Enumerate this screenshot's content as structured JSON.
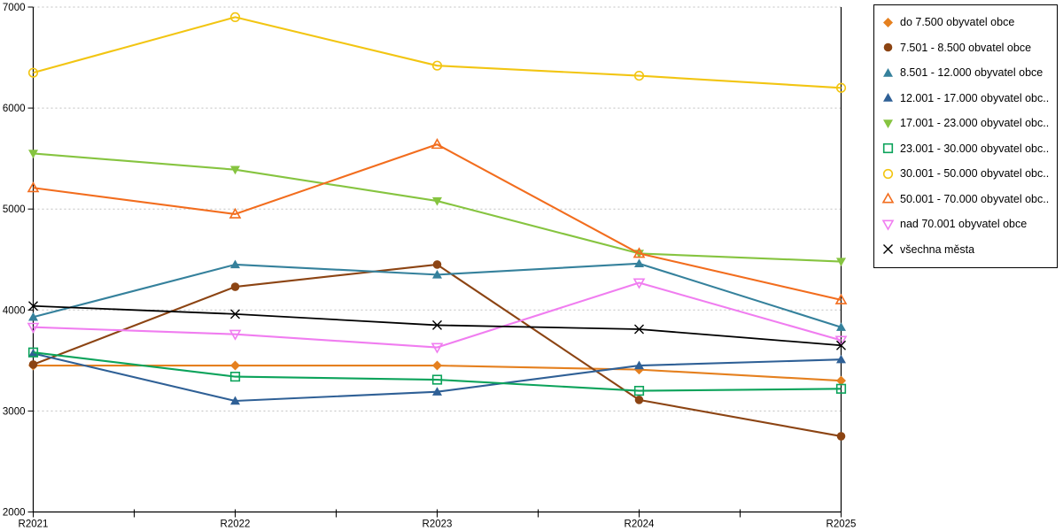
{
  "chart_data": {
    "type": "line",
    "title": "",
    "xlabel": "",
    "ylabel": "",
    "categories": [
      "R2021",
      "R2022",
      "R2023",
      "R2024",
      "R2025"
    ],
    "y_ticks": [
      2000,
      3000,
      4000,
      5000,
      6000,
      7000
    ],
    "ylim": [
      2000,
      7000
    ],
    "grid": "horizontal dashed lines at each 1000",
    "legend_position": "right",
    "colors": {
      "grid": "#c0c0c0",
      "axis": "#000000",
      "background": "#ffffff"
    },
    "series": [
      {
        "id": "do-7500",
        "label": "do 7.500 obyvatel obce",
        "color": "#e5801f",
        "marker": "diamond-filled",
        "values": [
          3450,
          3450,
          3450,
          3410,
          3300
        ]
      },
      {
        "id": "7501-8500",
        "label": "7.501 - 8.500 obvatel obce",
        "color": "#8c4413",
        "marker": "circle-filled",
        "values": [
          3460,
          4230,
          4450,
          3110,
          2750
        ]
      },
      {
        "id": "8501-12000",
        "label": "8.501 - 12.000 obyvatel obce",
        "color": "#35819c",
        "marker": "triangle-up-filled",
        "values": [
          3930,
          4450,
          4350,
          4460,
          3830
        ]
      },
      {
        "id": "12001-17000",
        "label": "12.001 - 17.000 obyvatel obc...",
        "color": "#2f6096",
        "marker": "triangle-up-filled",
        "values": [
          3570,
          3100,
          3190,
          3450,
          3510
        ]
      },
      {
        "id": "17001-23000",
        "label": "17.001 - 23.000 obyvatel obc...",
        "color": "#86c440",
        "marker": "triangle-down-filled",
        "values": [
          5550,
          5390,
          5080,
          4560,
          4480
        ]
      },
      {
        "id": "23001-30000",
        "label": "23.001 - 30.000 obyvatel obc...",
        "color": "#0ca35b",
        "marker": "square-open",
        "values": [
          3580,
          3340,
          3310,
          3200,
          3220
        ]
      },
      {
        "id": "30001-50000",
        "label": "30.001 - 50.000 obyvatel obc...",
        "color": "#f2c512",
        "marker": "circle-open",
        "values": [
          6350,
          6900,
          6420,
          6320,
          6200
        ]
      },
      {
        "id": "50001-70000",
        "label": "50.001 - 70.000 obyvatel obc...",
        "color": "#f26d1e",
        "marker": "triangle-up-open",
        "values": [
          5210,
          4950,
          5640,
          4560,
          4100
        ]
      },
      {
        "id": "nad-70001",
        "label": "nad 70.001 obyvatel obce",
        "color": "#f07df0",
        "marker": "triangle-down-open",
        "values": [
          3830,
          3760,
          3630,
          4270,
          3700
        ]
      },
      {
        "id": "vsechna-mesta",
        "label": "všechna města",
        "color": "#000000",
        "marker": "x",
        "values": [
          4040,
          3960,
          3850,
          3810,
          3650
        ]
      }
    ]
  }
}
